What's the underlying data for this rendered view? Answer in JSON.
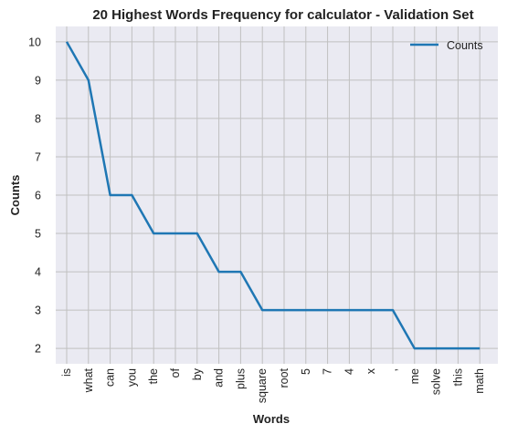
{
  "chart_data": {
    "type": "line",
    "title": "20 Highest Words Frequency for calculator - Validation Set",
    "xlabel": "Words",
    "ylabel": "Counts",
    "categories": [
      "is",
      "what",
      "can",
      "you",
      "the",
      "of",
      "by",
      "and",
      "plus",
      "square",
      "root",
      "5",
      "7",
      "4",
      "x",
      ",",
      "me",
      "solve",
      "this",
      "math"
    ],
    "series": [
      {
        "name": "Counts",
        "values": [
          10,
          9,
          6,
          6,
          5,
          5,
          5,
          4,
          4,
          3,
          3,
          3,
          3,
          3,
          3,
          3,
          2,
          2,
          2,
          2
        ],
        "color": "#1f77b4"
      }
    ],
    "yticks": [
      2,
      3,
      4,
      5,
      6,
      7,
      8,
      9,
      10
    ],
    "ylim": [
      1.6,
      10.4
    ],
    "grid": true,
    "legend_position": "top-right",
    "colors": {
      "background": "#eaeaf2",
      "grid": "#c0c0c0",
      "line": "#1f77b4"
    }
  }
}
